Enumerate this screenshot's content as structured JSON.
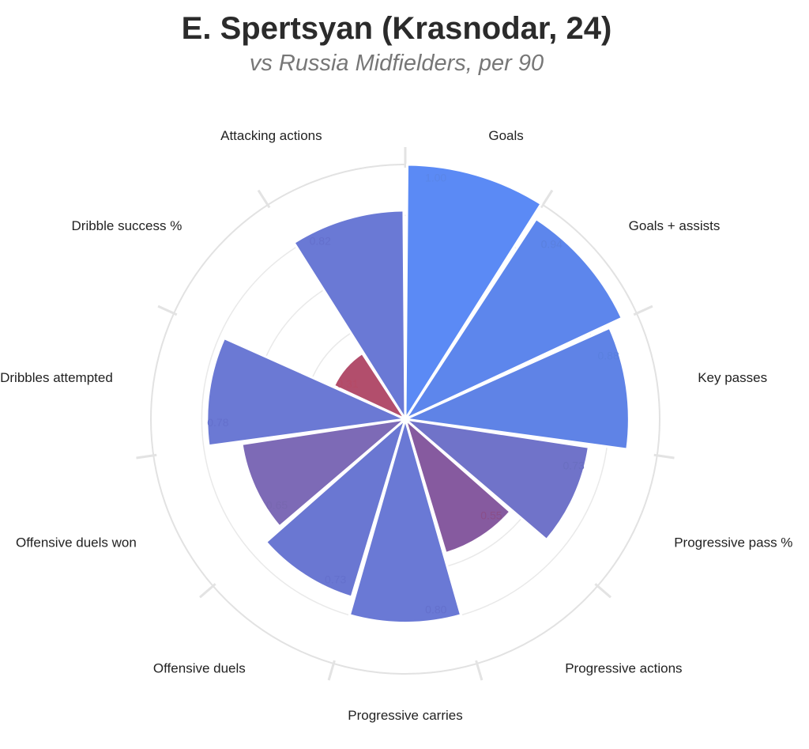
{
  "title": "E. Spertsyan (Krasnodar, 24)",
  "subtitle": "vs Russia Midfielders, per 90",
  "chart_data": {
    "type": "polar-bar",
    "title": "E. Spertsyan (Krasnodar, 24)",
    "subtitle": "vs Russia Midfielders, per 90",
    "rlim": [
      0,
      1
    ],
    "grid": true,
    "categories": [
      "Goals",
      "Goals + assists",
      "Key passes",
      "Progressive pass %",
      "Progressive actions",
      "Progressive carries",
      "Offensive duels",
      "Offensive duels won",
      "Dribbles attempted",
      "Dribble success %",
      "Attacking actions"
    ],
    "values": [
      1.0,
      0.94,
      0.88,
      0.73,
      0.55,
      0.8,
      0.73,
      0.65,
      0.78,
      0.31,
      0.82
    ],
    "value_labels": [
      "1.00",
      "0.94",
      "0.88",
      "0.73",
      "0.55",
      "0.80",
      "0.73",
      "0.65",
      "0.78",
      "0.31",
      "0.82"
    ],
    "colors": [
      "#5b8af5",
      "#5d86ec",
      "#5f83e6",
      "#7073c9",
      "#865a9f",
      "#6a79d5",
      "#6a77d2",
      "#7d6ab6",
      "#6b79d4",
      "#b24e6c",
      "#6a79d5"
    ],
    "value_label_colors": [
      "#5a86e8",
      "#5a80de",
      "#5a80de",
      "#6a6fc0",
      "#8a4f8a",
      "#6470cc",
      "#6470cc",
      "#7868b0",
      "#6470cc",
      "#b54a66",
      "#6470cc"
    ]
  }
}
